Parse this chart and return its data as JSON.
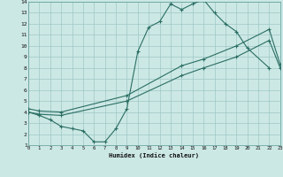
{
  "line1_x": [
    0,
    1,
    2,
    3,
    4,
    5,
    6,
    7,
    8,
    9,
    10,
    11,
    12,
    13,
    14,
    15,
    16,
    17,
    18,
    19,
    20,
    22
  ],
  "line1_y": [
    4.0,
    3.7,
    3.3,
    2.7,
    2.5,
    2.3,
    1.3,
    1.3,
    2.5,
    4.3,
    9.5,
    11.7,
    12.2,
    13.8,
    13.3,
    13.8,
    14.2,
    13.0,
    12.0,
    11.3,
    9.8,
    8.0
  ],
  "line2_x": [
    0,
    1,
    3,
    9,
    14,
    16,
    19,
    22,
    23
  ],
  "line2_y": [
    4.0,
    3.8,
    3.7,
    5.0,
    7.3,
    8.0,
    9.0,
    10.5,
    8.0
  ],
  "line3_x": [
    0,
    1,
    3,
    9,
    14,
    16,
    19,
    22,
    23
  ],
  "line3_y": [
    4.3,
    4.1,
    4.0,
    5.5,
    8.2,
    8.8,
    10.0,
    11.5,
    8.3
  ],
  "color": "#2a6e63",
  "bg_color": "#cce8e5",
  "grid_color": "#9ec8c4",
  "xlabel": "Humidex (Indice chaleur)",
  "xlim": [
    0,
    23
  ],
  "ylim": [
    1,
    14
  ],
  "xticks": [
    0,
    1,
    2,
    3,
    4,
    5,
    6,
    7,
    8,
    9,
    10,
    11,
    12,
    13,
    14,
    15,
    16,
    17,
    18,
    19,
    20,
    21,
    22,
    23
  ],
  "yticks": [
    1,
    2,
    3,
    4,
    5,
    6,
    7,
    8,
    9,
    10,
    11,
    12,
    13,
    14
  ]
}
